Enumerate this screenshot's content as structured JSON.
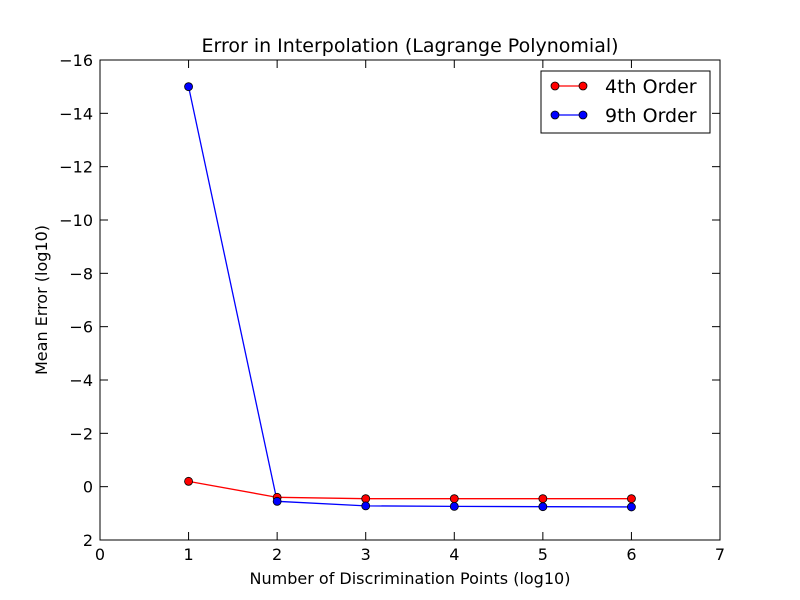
{
  "chart_data": {
    "type": "line",
    "title": "Error in Interpolation (Lagrange Polynomial)",
    "xlabel": "Number of Discrimination Points (log10)",
    "ylabel": "Mean Error (log10)",
    "xlim": [
      0,
      7
    ],
    "ylim": [
      2,
      -16
    ],
    "y_axis_inverted": true,
    "xticks": [
      "0",
      "1",
      "2",
      "3",
      "4",
      "5",
      "6",
      "7"
    ],
    "yticks": [
      "−16",
      "−14",
      "−12",
      "−10",
      "−8",
      "−6",
      "−4",
      "−2",
      "0",
      "2"
    ],
    "grid": false,
    "legend_position": "top-right",
    "x": [
      1,
      2,
      3,
      4,
      5,
      6
    ],
    "series": [
      {
        "name": "4th Order",
        "color": "#ff0000",
        "marker": "circle",
        "values": [
          -0.2,
          0.4,
          0.45,
          0.45,
          0.45,
          0.45
        ]
      },
      {
        "name": "9th Order",
        "color": "#0000ff",
        "marker": "circle",
        "values": [
          -15.0,
          0.55,
          0.72,
          0.74,
          0.75,
          0.76
        ]
      }
    ]
  }
}
